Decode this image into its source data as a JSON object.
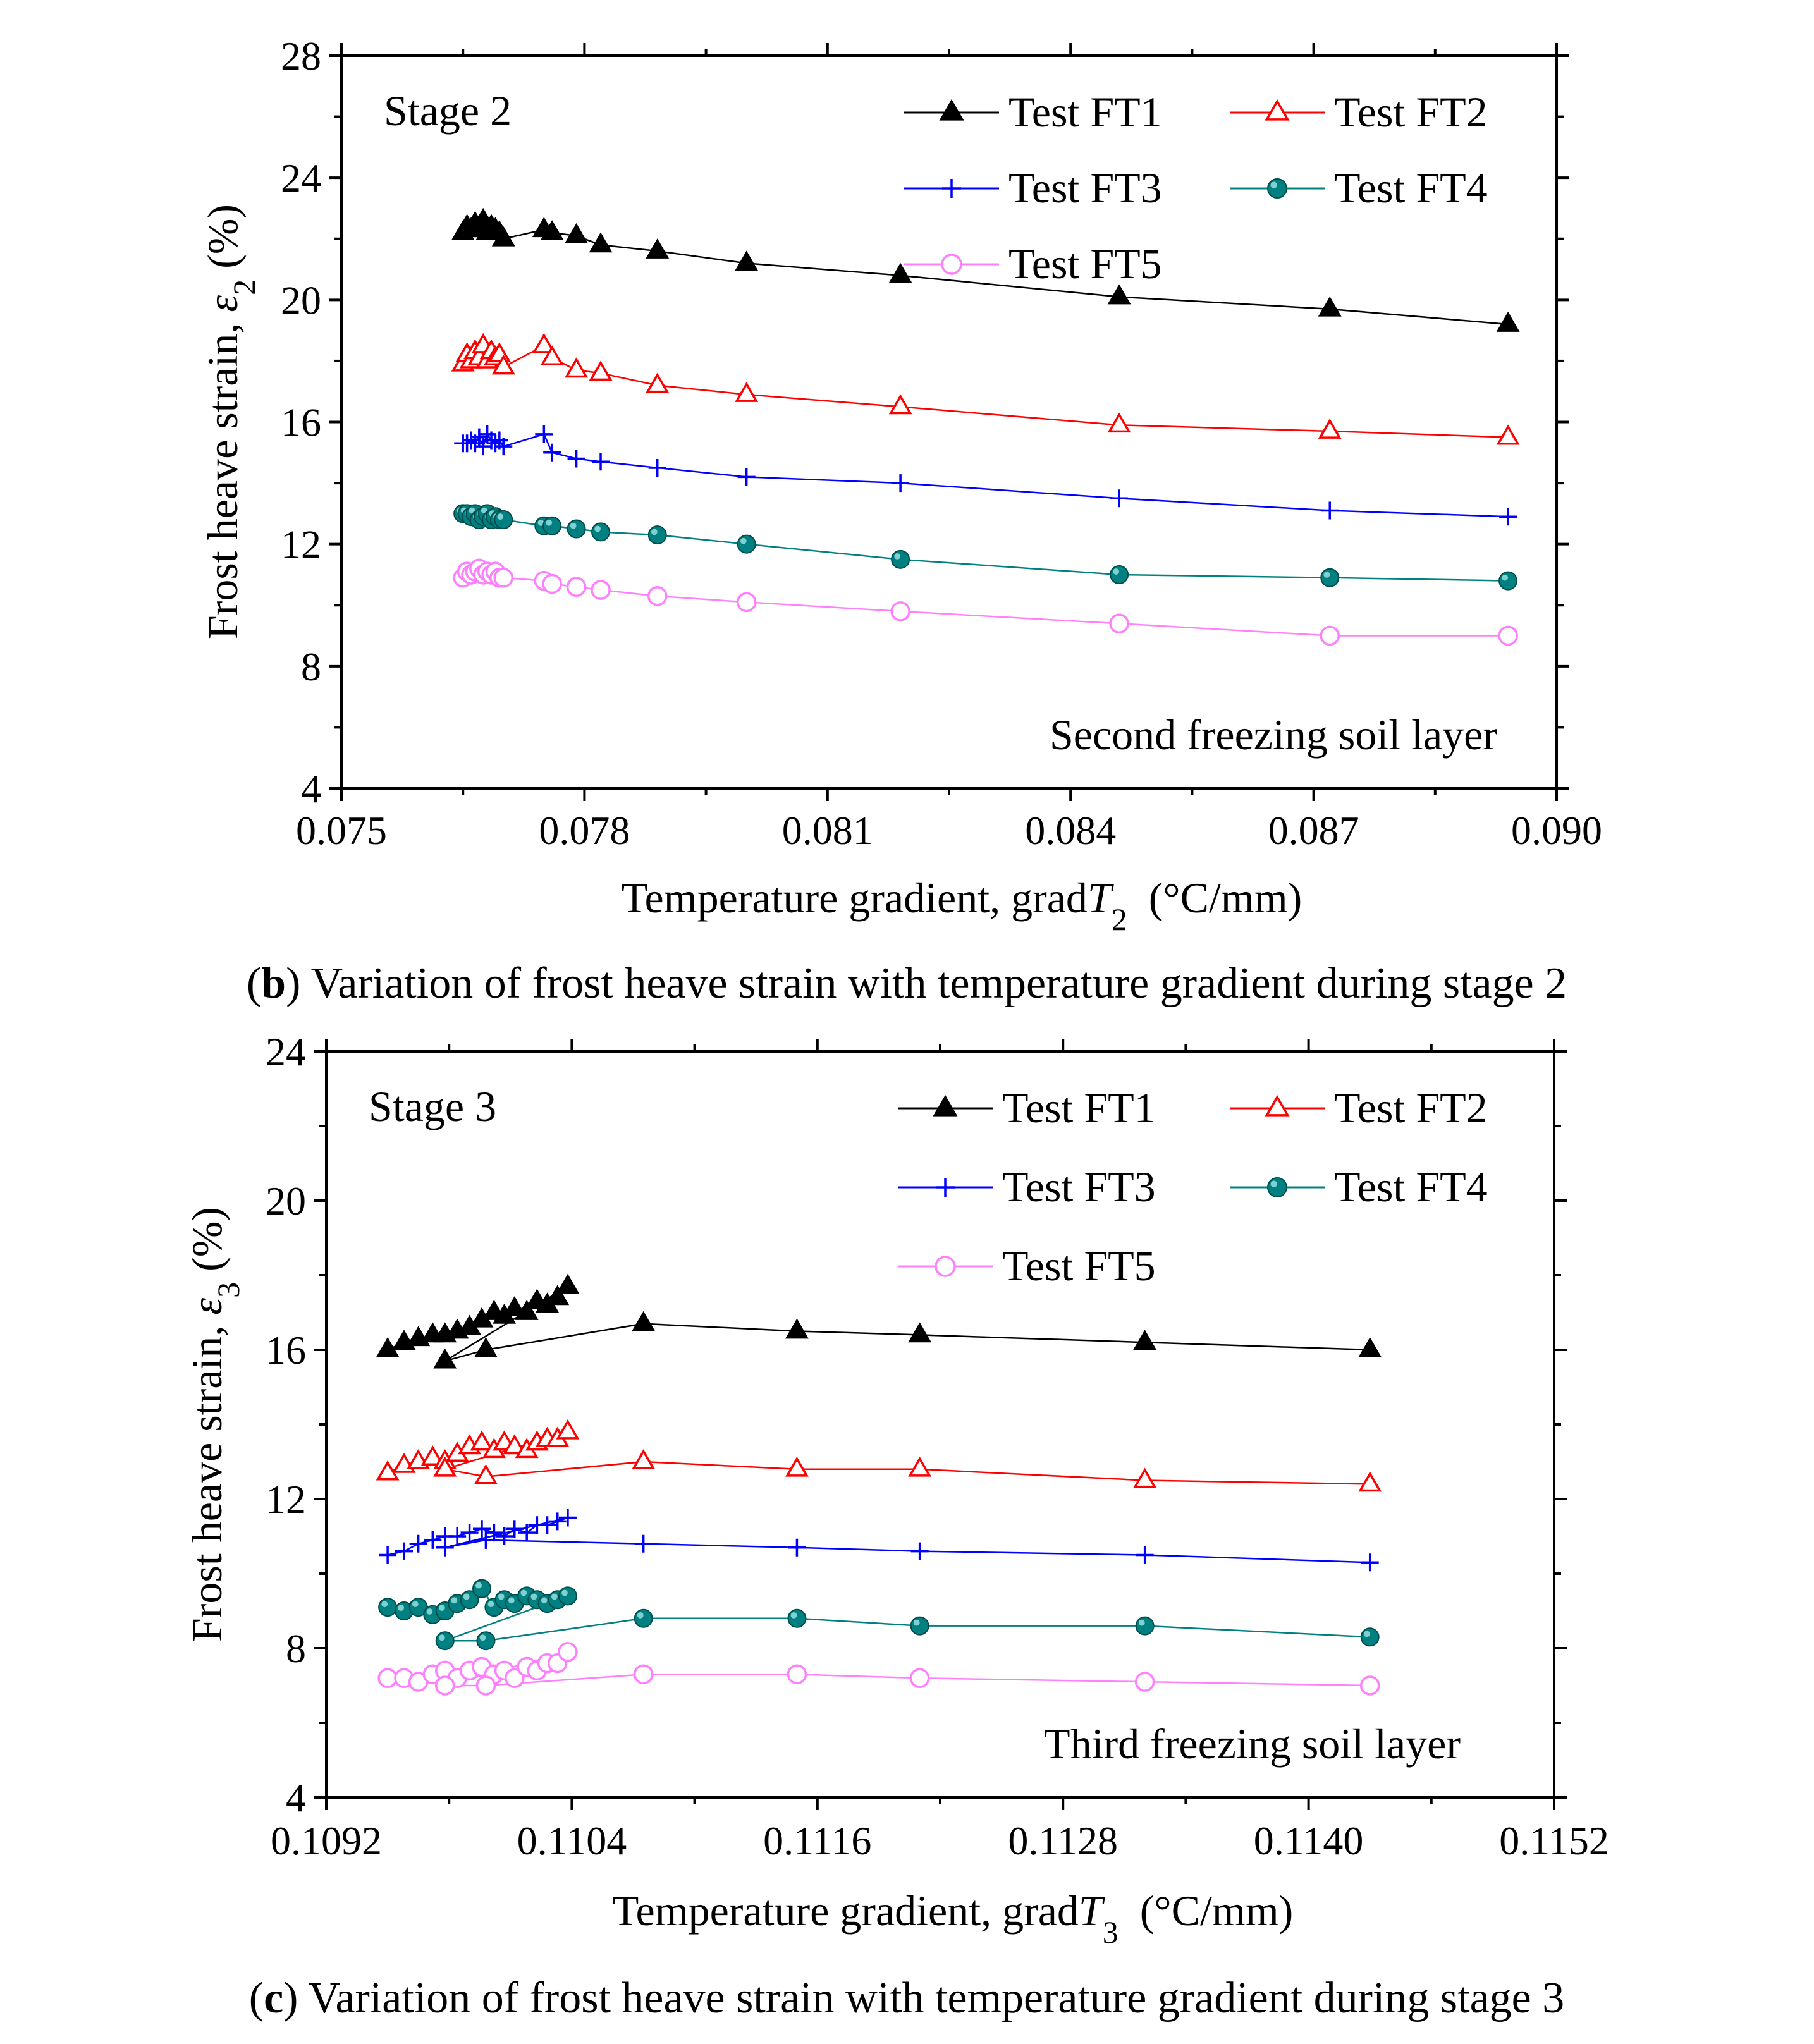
{
  "chart_data": [
    {
      "id": "b",
      "type": "line",
      "panel_text": "Stage 2",
      "annotation": "Second freezing soil layer",
      "xlabel_prefix": "Temperature gradient, grad",
      "xlabel_var": "T",
      "xlabel_sub": "2",
      "xlabel_unit": "(°C/mm)",
      "ylabel_prefix": "Frost heave strain, ",
      "ylabel_var": "ε",
      "ylabel_sub": "2",
      "ylabel_unit": " (%)",
      "xlim": [
        0.075,
        0.09
      ],
      "ylim": [
        4,
        28
      ],
      "xticks": [
        "0.075",
        "0.078",
        "0.081",
        "0.084",
        "0.087",
        "0.090"
      ],
      "yticks": [
        "4",
        "8",
        "12",
        "16",
        "20",
        "24",
        "28"
      ],
      "caption_letter": "b",
      "caption_text": ") Variation of frost heave strain with temperature gradient during stage 2",
      "x": [
        0.0765,
        0.07655,
        0.0766,
        0.07665,
        0.0767,
        0.07675,
        0.0768,
        0.07685,
        0.0769,
        0.07695,
        0.077,
        0.0775,
        0.0776,
        0.0779,
        0.0782,
        0.0789,
        0.08,
        0.0819,
        0.0846,
        0.0872,
        0.0894
      ],
      "series": [
        {
          "name": "Test FT1",
          "color": "#000000",
          "marker": "triangle-filled",
          "values": [
            22.2,
            22.4,
            22.3,
            22.5,
            22.3,
            22.6,
            22.2,
            22.4,
            22.3,
            22.2,
            22.0,
            22.3,
            22.2,
            22.1,
            21.8,
            21.6,
            21.2,
            20.8,
            20.1,
            19.7,
            19.2
          ]
        },
        {
          "name": "Test FT2",
          "color": "#ff0000",
          "marker": "triangle-open",
          "values": [
            17.9,
            18.2,
            18.0,
            18.3,
            18.1,
            18.5,
            18.0,
            18.3,
            18.1,
            18.2,
            17.8,
            18.5,
            18.1,
            17.7,
            17.6,
            17.2,
            16.9,
            16.5,
            15.9,
            15.7,
            15.5
          ]
        },
        {
          "name": "Test FT3",
          "color": "#0000ff",
          "marker": "plus",
          "values": [
            15.3,
            15.3,
            15.4,
            15.3,
            15.5,
            15.2,
            15.6,
            15.4,
            15.3,
            15.4,
            15.2,
            15.6,
            15.0,
            14.8,
            14.7,
            14.5,
            14.2,
            14.0,
            13.5,
            13.1,
            12.9
          ]
        },
        {
          "name": "Test FT4",
          "color": "#008080",
          "marker": "circle-filled",
          "values": [
            13.0,
            13.0,
            12.9,
            13.0,
            12.8,
            12.9,
            13.0,
            12.8,
            12.9,
            12.8,
            12.8,
            12.6,
            12.6,
            12.5,
            12.4,
            12.3,
            12.0,
            11.5,
            11.0,
            10.9,
            10.8
          ]
        },
        {
          "name": "Test FT5",
          "color": "#ff80ff",
          "marker": "circle-open",
          "values": [
            10.9,
            11.1,
            11.0,
            11.1,
            11.2,
            11.0,
            11.1,
            11.0,
            11.1,
            10.9,
            10.9,
            10.8,
            10.7,
            10.6,
            10.5,
            10.3,
            10.1,
            9.8,
            9.4,
            9.0,
            9.0
          ]
        }
      ]
    },
    {
      "id": "c",
      "type": "line",
      "panel_text": "Stage 3",
      "annotation": "Third freezing soil layer",
      "xlabel_prefix": "Temperature gradient, grad",
      "xlabel_var": "T",
      "xlabel_sub": "3",
      "xlabel_unit": "(°C/mm)",
      "ylabel_prefix": "Frost heave strain, ",
      "ylabel_var": "ε",
      "ylabel_sub": "3",
      "ylabel_unit": " (%)",
      "xlim": [
        0.1092,
        0.1152
      ],
      "ylim": [
        4,
        24
      ],
      "xticks": [
        "0.1092",
        "0.1104",
        "0.1116",
        "0.1128",
        "0.1140",
        "0.1152"
      ],
      "yticks": [
        "4",
        "8",
        "12",
        "16",
        "20",
        "24"
      ],
      "caption_letter": "c",
      "caption_text": ") Variation of frost heave strain with temperature gradient during stage 3",
      "x": [
        0.1095,
        0.10958,
        0.10965,
        0.10972,
        0.10978,
        0.10984,
        0.1099,
        0.10996,
        0.11002,
        0.11007,
        0.11012,
        0.11018,
        0.11023,
        0.11028,
        0.11033,
        0.11038,
        0.10978,
        0.10998,
        0.11075,
        0.1115,
        0.1121,
        0.1132,
        0.1143
      ],
      "series": [
        {
          "name": "Test FT1",
          "color": "#000000",
          "marker": "triangle-filled",
          "values": [
            16.0,
            16.2,
            16.3,
            16.4,
            16.4,
            16.5,
            16.6,
            16.8,
            17.0,
            16.9,
            17.1,
            17.0,
            17.3,
            17.2,
            17.4,
            17.7,
            15.7,
            16.0,
            16.7,
            16.5,
            16.4,
            16.2,
            16.0
          ]
        },
        {
          "name": "Test FT2",
          "color": "#ff0000",
          "marker": "triangle-open",
          "values": [
            12.7,
            12.9,
            13.0,
            13.1,
            13.0,
            13.2,
            13.4,
            13.5,
            13.3,
            13.5,
            13.4,
            13.3,
            13.5,
            13.6,
            13.6,
            13.8,
            12.8,
            12.6,
            13.0,
            12.8,
            12.8,
            12.5,
            12.4
          ]
        },
        {
          "name": "Test FT3",
          "color": "#0000ff",
          "marker": "plus",
          "values": [
            10.5,
            10.6,
            10.8,
            10.9,
            11.0,
            11.0,
            11.1,
            11.2,
            11.1,
            11.0,
            11.2,
            11.1,
            11.3,
            11.3,
            11.4,
            11.5,
            10.7,
            10.9,
            10.8,
            10.7,
            10.6,
            10.5,
            10.3
          ]
        },
        {
          "name": "Test FT4",
          "color": "#008080",
          "marker": "circle-filled",
          "values": [
            9.1,
            9.0,
            9.1,
            8.9,
            9.0,
            9.2,
            9.3,
            9.6,
            9.1,
            9.3,
            9.2,
            9.4,
            9.3,
            9.2,
            9.3,
            9.4,
            8.2,
            8.2,
            8.8,
            8.8,
            8.6,
            8.6,
            8.3
          ]
        },
        {
          "name": "Test FT5",
          "color": "#ff80ff",
          "marker": "circle-open",
          "values": [
            7.2,
            7.2,
            7.1,
            7.3,
            7.4,
            7.2,
            7.4,
            7.5,
            7.3,
            7.4,
            7.2,
            7.5,
            7.4,
            7.6,
            7.6,
            7.9,
            7.0,
            7.0,
            7.3,
            7.3,
            7.2,
            7.1,
            7.0
          ]
        }
      ]
    }
  ]
}
